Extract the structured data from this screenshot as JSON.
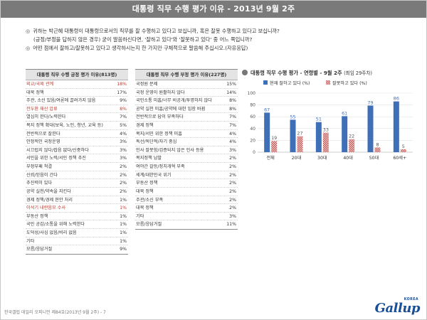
{
  "title": "대통령 직무 수행 평가 이유 - 2013년 9월 2주",
  "questions": [
    {
      "bullet": "◎",
      "text": "귀하는 박근혜 대통령이 대통령으로서의 직무를 잘 수행하고 있다고 보십니까, 혹은 잘못 수행하고 있다고 보십니까?"
    },
    {
      "bullet": "",
      "text": "(긍정/부정을 답하지 않은 경우) 굳이 말씀하신다면, '잘하고 있다'와 '잘못하고 있다' 중 어느 쪽입니까?"
    },
    {
      "bullet": "◎",
      "text": "어떤 점에서 잘하고/잘못하고 있다고 생각하시는지 한 가지만 구체적으로 말씀해 주십시오.(자유응답)"
    }
  ],
  "positive_table": {
    "header": "대통령 직무 수행 긍정 평가 이유(813명)",
    "rows": [
      {
        "label": "외교/국제 관계",
        "value": "18%",
        "highlight": true
      },
      {
        "label": "대북 정책",
        "value": "17%",
        "highlight": false
      },
      {
        "label": "주관, 소신 있음/여론에 끌려가지 않음",
        "value": "9%",
        "highlight": false
      },
      {
        "label": "전두환 재산 압류",
        "value": "8%",
        "highlight": true
      },
      {
        "label": "열심히 한다/노력한다",
        "value": "7%",
        "highlight": false
      },
      {
        "label": "복지 정책 확대(보육, 노인, 청년, 교육 등)",
        "value": "5%",
        "highlight": false
      },
      {
        "label": "전반적으로 잘한다",
        "value": "4%",
        "highlight": false
      },
      {
        "label": "안정적인 국정운영",
        "value": "3%",
        "highlight": false
      },
      {
        "label": "시끄럽지 않다/잡음 없다/신중하다",
        "value": "3%",
        "highlight": false
      },
      {
        "label": "서민을 위한 노력/서민 정책 추진",
        "value": "3%",
        "highlight": false
      },
      {
        "label": "부정부패 척결",
        "value": "2%",
        "highlight": false
      },
      {
        "label": "신뢰/믿음이 간다",
        "value": "2%",
        "highlight": false
      },
      {
        "label": "추진력이 있다",
        "value": "2%",
        "highlight": false
      },
      {
        "label": "공약 실천/약속을 지킨다",
        "value": "2%",
        "highlight": false
      },
      {
        "label": "경제 정책/경제 현안 처리",
        "value": "1%",
        "highlight": false
      },
      {
        "label": "이석기 내란음모 수사",
        "value": "1%",
        "highlight": true
      },
      {
        "label": "부동산 정책",
        "value": "1%",
        "highlight": false
      },
      {
        "label": "국민 공감/소통을 위해 노력한다",
        "value": "1%",
        "highlight": false
      },
      {
        "label": "도덕성/사심 없음/비리 없음",
        "value": "1%",
        "highlight": false
      },
      {
        "label": "기타",
        "value": "1%",
        "highlight": false
      },
      {
        "label": "모름/응답거절",
        "value": "9%",
        "highlight": false
      }
    ]
  },
  "negative_table": {
    "header": "대통령 직무 수행 부정 평가 이유(227명)",
    "rows": [
      {
        "label": "국정원 문제",
        "value": "15%"
      },
      {
        "label": "국정 운영이 원활하지 않다",
        "value": "14%"
      },
      {
        "label": "국민소통 미흡/너무 비공개/투명하지 않다",
        "value": "8%"
      },
      {
        "label": "공약 실천 미흡/공약에 대한 입장 바뀜",
        "value": "8%"
      },
      {
        "label": "전반적으로 답이 부족하다",
        "value": "7%"
      },
      {
        "label": "경제 정책",
        "value": "7%"
      },
      {
        "label": "복지/서민 위한 정책 미흡",
        "value": "4%"
      },
      {
        "label": "독선/독단적/자기 중심",
        "value": "4%"
      },
      {
        "label": "인사 잘못함/검증되지 않은 인사 등용",
        "value": "3%"
      },
      {
        "label": "복지정책 남발",
        "value": "2%"
      },
      {
        "label": "여야간 갈등/정치개혁 부족",
        "value": "2%"
      },
      {
        "label": "세계/대한민국 위기",
        "value": "2%"
      },
      {
        "label": "부동산 정책",
        "value": "2%"
      },
      {
        "label": "대북 정책",
        "value": "2%"
      },
      {
        "label": "주관/소신 부족",
        "value": "2%"
      },
      {
        "label": "대북 정책",
        "value": "2%"
      },
      {
        "label": "기타",
        "value": "3%"
      },
      {
        "label": "모름/응답거절",
        "value": "11%"
      }
    ]
  },
  "chart_data": {
    "type": "bar",
    "title": "대통령 직무 수행 평가 - 연령별 - 9월 2주",
    "subtitle": "(최임 29주차)",
    "categories": [
      "전체",
      "20대",
      "30대",
      "40대",
      "50대",
      "60세+"
    ],
    "series": [
      {
        "name": "현재 잘하고 있다 (%)",
        "values": [
          67,
          55,
          51,
          61,
          79,
          86
        ],
        "color": "#3f6fb6"
      },
      {
        "name": "잘못하고 있다 (%)",
        "values": [
          19,
          27,
          33,
          22,
          8,
          5
        ],
        "color": "#c0504d",
        "pattern": "checker"
      }
    ],
    "yticks": [
      0,
      20,
      40,
      60,
      80,
      100
    ],
    "ylim": [
      0,
      100
    ],
    "legend": "top"
  },
  "footer": "한국갤럽 데일리 오피니언 제84호(2013년 9월 2주) - 7",
  "logo": {
    "word": "Gallup",
    "korea": "KOREA"
  }
}
